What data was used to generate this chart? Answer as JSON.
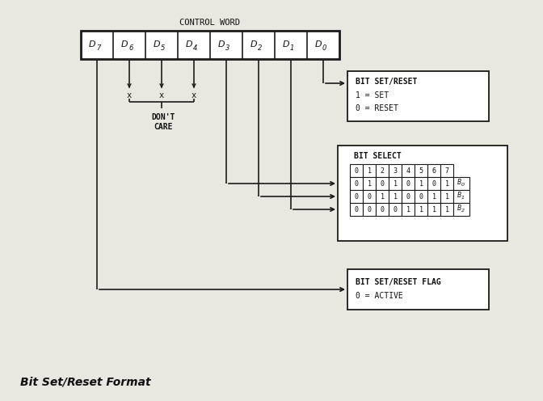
{
  "title": "CONTROL WORD",
  "bits": [
    "D7",
    "D6",
    "D5",
    "D4",
    "D3",
    "D2",
    "D1",
    "D0"
  ],
  "bit_subs": [
    "7",
    "6",
    "5",
    "4",
    "3",
    "2",
    "1",
    "0"
  ],
  "dont_care_label_1": "DON'T",
  "dont_care_label_2": "CARE",
  "box1_title": "BIT SET/RESET",
  "box1_line1": "1 = SET",
  "box1_line2": "0 = RESET",
  "box2_title": "BIT SELECT",
  "bit_select_header": [
    "0",
    "1",
    "2",
    "3",
    "4",
    "5",
    "6",
    "7"
  ],
  "bit_select_row0": [
    "0",
    "1",
    "0",
    "1",
    "0",
    "1",
    "0",
    "1"
  ],
  "bit_select_row0_label": "B0",
  "bit_select_row1": [
    "0",
    "0",
    "1",
    "1",
    "0",
    "0",
    "1",
    "1"
  ],
  "bit_select_row1_label": "B1",
  "bit_select_row2": [
    "0",
    "0",
    "0",
    "0",
    "1",
    "1",
    "1",
    "1"
  ],
  "bit_select_row2_label": "B2",
  "box3_line1": "BIT SET/RESET FLAG",
  "box3_line2": "0 = ACTIVE",
  "caption": "Bit Set/Reset Format",
  "bg_color": "#e8e8e0",
  "box_color": "#ffffff",
  "line_color": "#1a1a1a",
  "text_color": "#111111"
}
